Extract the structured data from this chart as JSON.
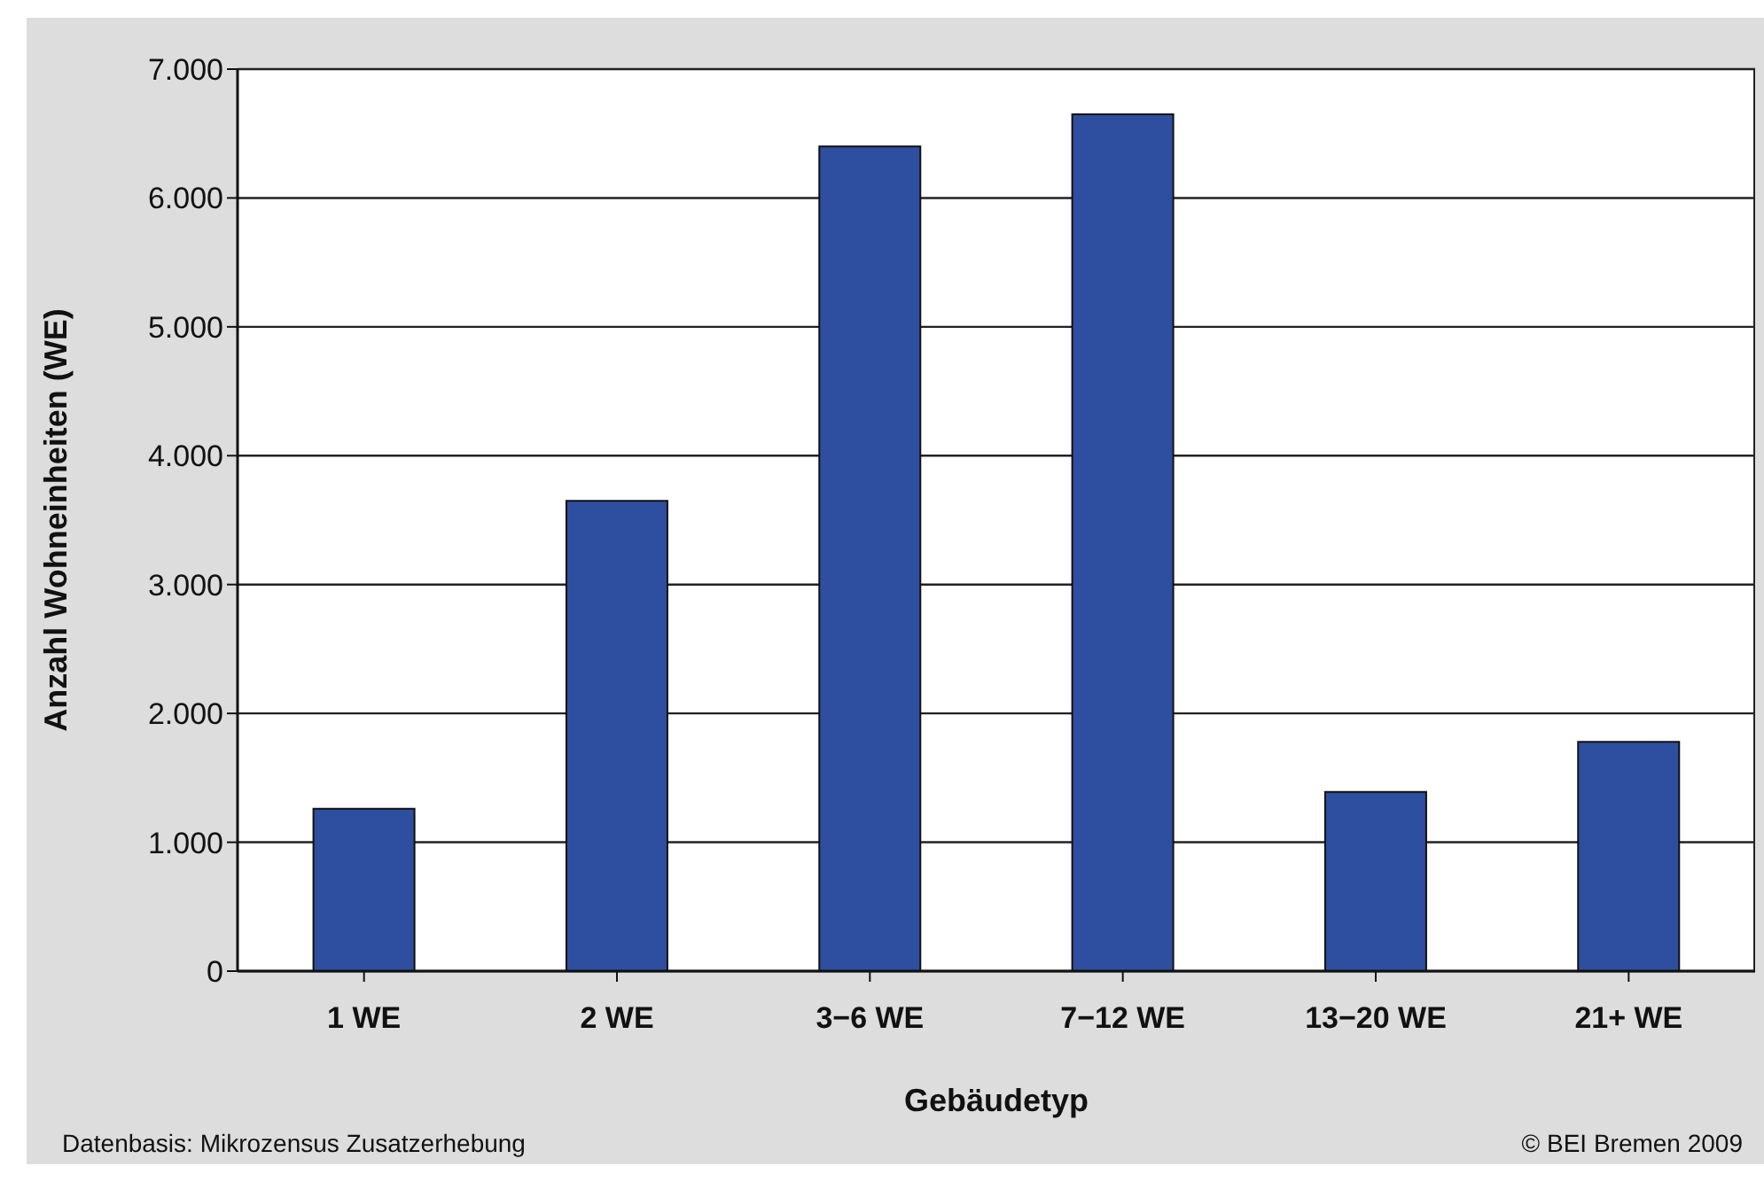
{
  "chart_data": {
    "type": "bar",
    "xlabel": "Gebäudetyp",
    "ylabel": "Anzahl Wohneinheiten (WE)",
    "categories": [
      "1 WE",
      "2 WE",
      "3−6 WE",
      "7−12 WE",
      "13−20 WE",
      "21+ WE"
    ],
    "values": [
      1260,
      3650,
      6400,
      6650,
      1390,
      1780
    ],
    "color": "#2e4f9f",
    "ylim": [
      0,
      7000
    ],
    "yticks": [
      {
        "value": 0,
        "label": "0"
      },
      {
        "value": 1000,
        "label": "1.000"
      },
      {
        "value": 2000,
        "label": "2.000"
      },
      {
        "value": 3000,
        "label": "3.000"
      },
      {
        "value": 4000,
        "label": "4.000"
      },
      {
        "value": 5000,
        "label": "5.000"
      },
      {
        "value": 6000,
        "label": "6.000"
      },
      {
        "value": 7000,
        "label": "7.000"
      }
    ],
    "grid": "y",
    "annotations": [
      "Datenbasis: Mikrozensus Zusatzerhebung",
      "© BEI Bremen 2009"
    ]
  }
}
